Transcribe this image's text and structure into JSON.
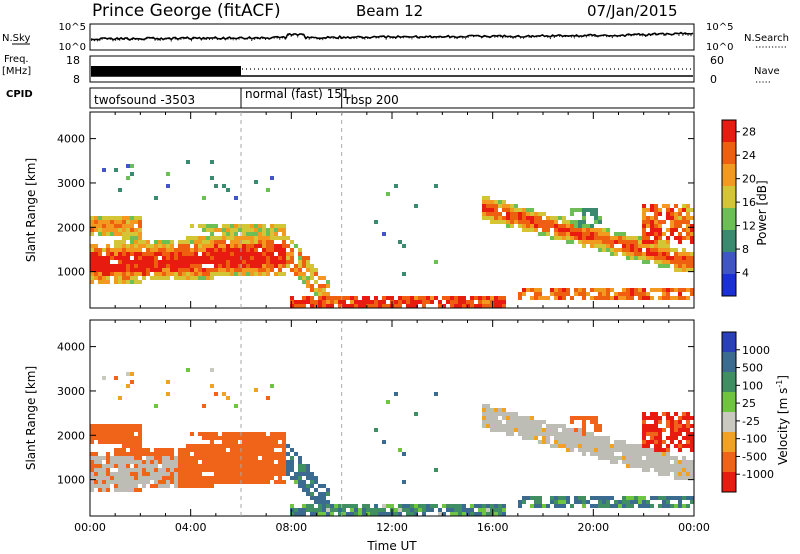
{
  "header": {
    "station": "Prince George (fitACF)",
    "beam": "Beam 12",
    "date": "07/Jan/2015"
  },
  "left_labels": {
    "nsky": "N.Sky",
    "freq": "Freq.",
    "freq_unit": "[MHz]",
    "cpid": "CPID"
  },
  "right_labels": {
    "nsearch": "N.Search",
    "nave": "Nave"
  },
  "noise_panel": {
    "left_ticks": [
      "10^5",
      "10^0"
    ],
    "right_ticks": [
      "10^5",
      "10^0"
    ]
  },
  "freq_panel": {
    "left_ticks": [
      "18",
      "8"
    ],
    "right_ticks": [
      "60",
      "0"
    ]
  },
  "cpid_segments": [
    {
      "label": "twofsound -3503",
      "start_hour": 0.0
    },
    {
      "label": "normal (fast) 151",
      "start_hour": 6.0
    },
    {
      "label": "rbsp 200",
      "start_hour": 10.0
    }
  ],
  "chart_data": [
    {
      "type": "heatmap",
      "name": "power",
      "ylabel": "Slant Range [km]",
      "xlabel": "",
      "x_range_hours": [
        0,
        24
      ],
      "ylim": [
        180,
        4600
      ],
      "yticks": [
        "1000",
        "2000",
        "3000",
        "4000"
      ],
      "colorbar": {
        "label": "Power [dB]",
        "ticks": [
          "4",
          "8",
          "12",
          "16",
          "20",
          "24",
          "28"
        ],
        "range": [
          0,
          30
        ]
      }
    },
    {
      "type": "heatmap",
      "name": "velocity",
      "ylabel": "Slant Range [km]",
      "xlabel": "Time UT",
      "x_range_hours": [
        0,
        24
      ],
      "xticks": [
        "00:00",
        "04:00",
        "08:00",
        "12:00",
        "16:00",
        "20:00",
        "00:00"
      ],
      "ylim": [
        180,
        4600
      ],
      "yticks": [
        "1000",
        "2000",
        "3000",
        "4000"
      ],
      "colorbar": {
        "label": "Velocity [m s",
        "label_sup": "-1",
        "label_tail": "]",
        "ticks": [
          "1000",
          "500",
          "100",
          "25",
          "-25",
          "-100",
          "-500",
          "-1000"
        ]
      }
    }
  ],
  "colors": {
    "power_scale": [
      "#1a2fd6",
      "#3f56c4",
      "#3a8a70",
      "#6bbf55",
      "#d3c535",
      "#f19a1f",
      "#ef5f10",
      "#e81b10"
    ],
    "velocity_scale": [
      "#2a40b8",
      "#3b6b8e",
      "#3f8f63",
      "#6fc440",
      "#c9c9c0",
      "#f0a224",
      "#ef6418",
      "#e81b10"
    ],
    "ground_scatter": "#bdbdb5"
  }
}
